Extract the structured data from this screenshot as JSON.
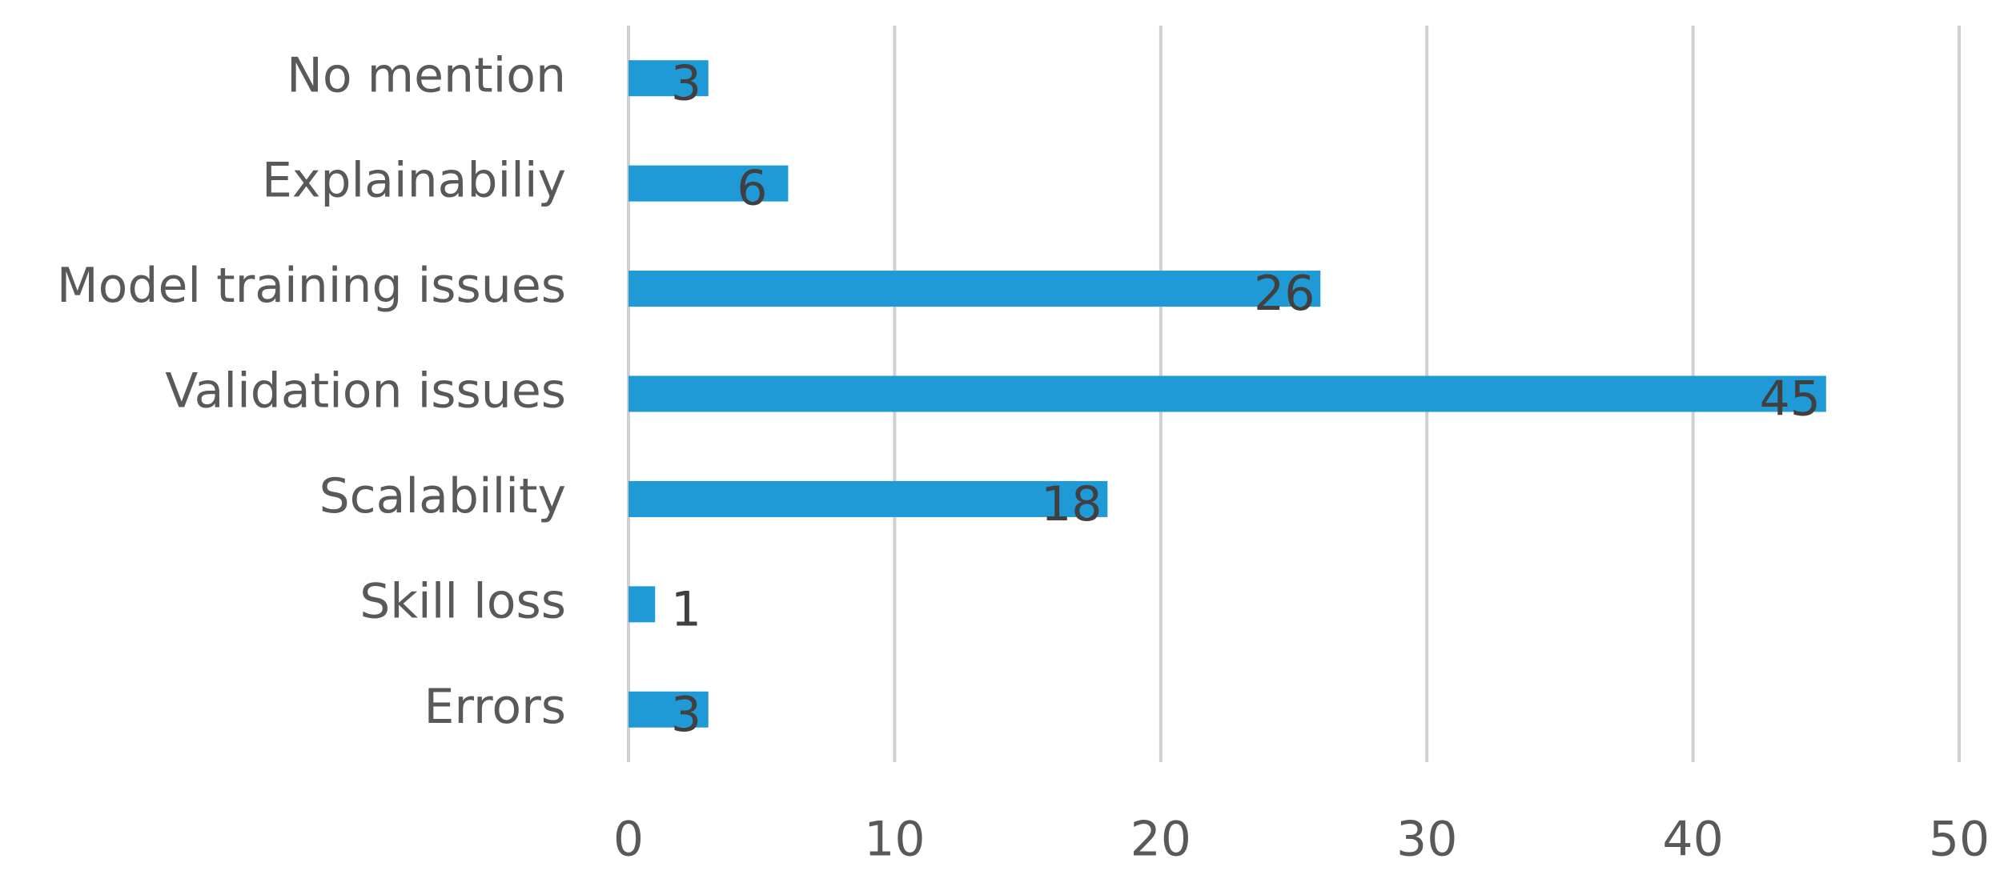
{
  "chart_data": {
    "type": "bar",
    "orientation": "horizontal",
    "categories": [
      "No mention",
      "Explainabiliy",
      "Model training issues",
      "Validation issues",
      "Scalability",
      "Skill loss",
      "Errors"
    ],
    "values": [
      3,
      6,
      26,
      45,
      18,
      1,
      3
    ],
    "color": "#1f9ad6",
    "xlim": [
      0,
      50
    ],
    "xticks": [
      0,
      10,
      20,
      30,
      40,
      50
    ],
    "grid": true
  }
}
